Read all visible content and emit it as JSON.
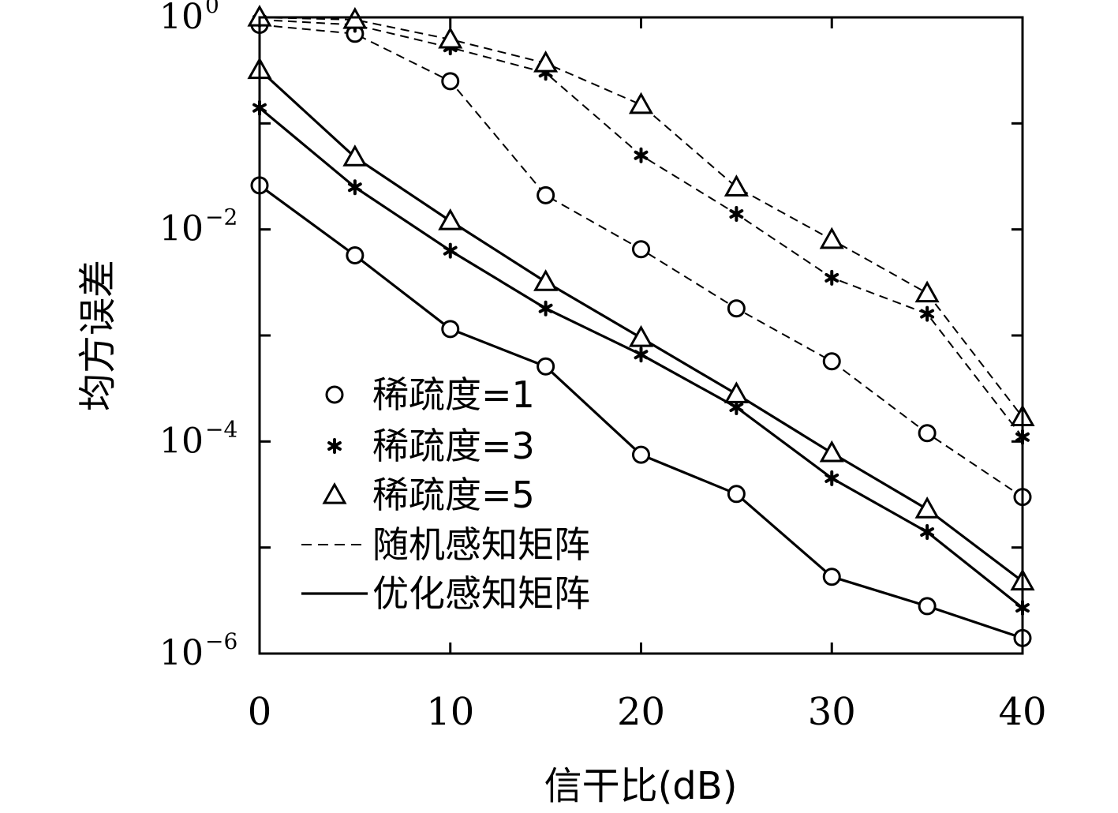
{
  "chart_data": {
    "type": "line",
    "title": "",
    "xlabel": "信干比(dB)",
    "ylabel": "均方误差",
    "x": [
      0,
      5,
      10,
      15,
      20,
      25,
      30,
      35,
      40
    ],
    "xlim": [
      0,
      40
    ],
    "xticks": [
      0,
      10,
      20,
      30,
      40
    ],
    "xtick_labels": [
      "0",
      "10",
      "20",
      "30",
      "40"
    ],
    "ylim": [
      1e-06,
      1
    ],
    "yscale": "log",
    "yticks": [
      1,
      0.01,
      0.0001,
      1e-06
    ],
    "ytick_labels": [
      {
        "base": "10",
        "exp": "0"
      },
      {
        "base": "10",
        "exp": "−2"
      },
      {
        "base": "10",
        "exp": "−4"
      },
      {
        "base": "10",
        "exp": "−6"
      }
    ],
    "grid": false,
    "legend_position": "bottom-left",
    "legend": [
      {
        "label": "稀疏度=1",
        "marker": "circle"
      },
      {
        "label": "稀疏度=3",
        "marker": "star"
      },
      {
        "label": "稀疏度=5",
        "marker": "triangle"
      },
      {
        "label": "随机感知矩阵",
        "line": "dashed"
      },
      {
        "label": "优化感知矩阵",
        "line": "solid"
      }
    ],
    "series": [
      {
        "sparsity": 1,
        "matrix": "random",
        "marker": "circle",
        "line": "dashed",
        "values": [
          0.85,
          0.7,
          0.25,
          0.021,
          0.0065,
          0.0018,
          0.00057,
          0.00012,
          3e-05
        ]
      },
      {
        "sparsity": 3,
        "matrix": "random",
        "marker": "star",
        "line": "dashed",
        "values": [
          0.95,
          0.85,
          0.52,
          0.3,
          0.05,
          0.014,
          0.0035,
          0.0016,
          0.00011
        ]
      },
      {
        "sparsity": 5,
        "matrix": "random",
        "marker": "triangle",
        "line": "dashed",
        "values": [
          1.0,
          0.95,
          0.62,
          0.37,
          0.15,
          0.025,
          0.008,
          0.0025,
          0.00017
        ]
      },
      {
        "sparsity": 1,
        "matrix": "optimized",
        "marker": "circle",
        "line": "solid",
        "values": [
          0.026,
          0.0057,
          0.00115,
          0.00051,
          7.5e-05,
          3.2e-05,
          5.3e-06,
          2.8e-06,
          1.4e-06
        ]
      },
      {
        "sparsity": 3,
        "matrix": "optimized",
        "marker": "star",
        "line": "solid",
        "values": [
          0.14,
          0.025,
          0.0063,
          0.0018,
          0.00066,
          0.00021,
          4.5e-05,
          1.4e-05,
          2.7e-06
        ]
      },
      {
        "sparsity": 5,
        "matrix": "optimized",
        "marker": "triangle",
        "line": "solid",
        "values": [
          0.32,
          0.048,
          0.012,
          0.0032,
          0.00095,
          0.00028,
          7.8e-05,
          2.3e-05,
          4.8e-06
        ]
      }
    ]
  }
}
